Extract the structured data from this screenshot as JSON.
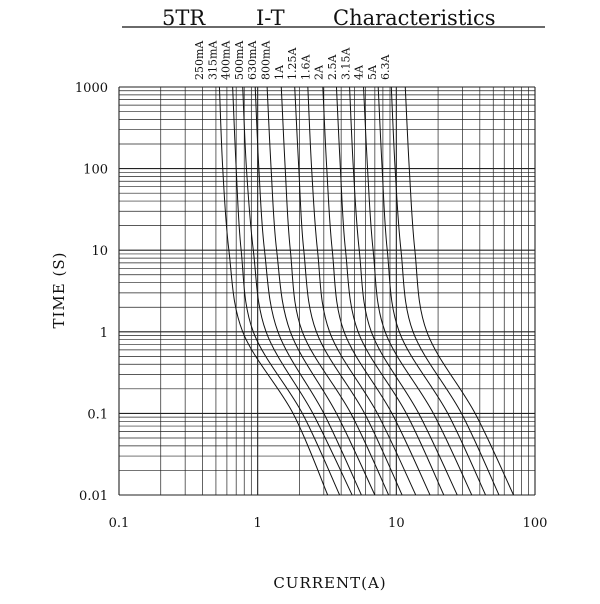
{
  "chart_data": {
    "type": "line",
    "title_parts": [
      "5TR",
      "I-T",
      "Characteristics"
    ],
    "xlabel": "CURRENT(A)",
    "ylabel": "TIME (S)",
    "x_scale": "log",
    "y_scale": "log",
    "xlim": [
      0.1,
      100
    ],
    "ylim": [
      0.01,
      1000
    ],
    "grid": true,
    "x_ticks": [
      {
        "value": 0.1,
        "label": "0.1"
      },
      {
        "value": 1,
        "label": "1"
      },
      {
        "value": 10,
        "label": "10"
      },
      {
        "value": 100,
        "label": "100"
      }
    ],
    "y_ticks": [
      {
        "value": 1000,
        "label": "1000"
      },
      {
        "value": 100,
        "label": "100"
      },
      {
        "value": 10,
        "label": "10"
      },
      {
        "value": 1,
        "label": "1"
      },
      {
        "value": 0.1,
        "label": "0.1"
      },
      {
        "value": 0.01,
        "label": "0.01"
      }
    ],
    "line_color": "#111111",
    "grid_color": "#222222",
    "series": [
      {
        "name": "250mA",
        "points": [
          [
            0.53,
            1000
          ],
          [
            0.56,
            100
          ],
          [
            0.62,
            10
          ],
          [
            0.78,
            1
          ],
          [
            1.8,
            0.1
          ],
          [
            3.2,
            0.01
          ]
        ]
      },
      {
        "name": "315mA",
        "points": [
          [
            0.66,
            1000
          ],
          [
            0.7,
            100
          ],
          [
            0.76,
            10
          ],
          [
            0.93,
            1
          ],
          [
            2.1,
            0.1
          ],
          [
            3.9,
            0.01
          ]
        ]
      },
      {
        "name": "400mA",
        "points": [
          [
            0.78,
            1000
          ],
          [
            0.83,
            100
          ],
          [
            0.93,
            10
          ],
          [
            1.15,
            1
          ],
          [
            2.5,
            0.1
          ],
          [
            4.8,
            0.01
          ]
        ]
      },
      {
        "name": "500mA",
        "points": [
          [
            0.96,
            1000
          ],
          [
            1.02,
            100
          ],
          [
            1.12,
            10
          ],
          [
            1.4,
            1
          ],
          [
            3.0,
            0.1
          ],
          [
            5.6,
            0.01
          ]
        ]
      },
      {
        "name": "630mA",
        "points": [
          [
            1.17,
            1000
          ],
          [
            1.25,
            100
          ],
          [
            1.37,
            10
          ],
          [
            1.72,
            1
          ],
          [
            3.7,
            0.1
          ],
          [
            7.0,
            0.01
          ]
        ]
      },
      {
        "name": "800mA",
        "points": [
          [
            1.48,
            1000
          ],
          [
            1.58,
            100
          ],
          [
            1.72,
            10
          ],
          [
            2.1,
            1
          ],
          [
            4.7,
            0.1
          ],
          [
            8.8,
            0.01
          ]
        ]
      },
      {
        "name": "1A",
        "points": [
          [
            1.85,
            1000
          ],
          [
            1.98,
            100
          ],
          [
            2.15,
            10
          ],
          [
            2.65,
            1
          ],
          [
            5.9,
            0.1
          ],
          [
            11,
            0.01
          ]
        ]
      },
      {
        "name": "1.25A",
        "points": [
          [
            2.3,
            1000
          ],
          [
            2.45,
            100
          ],
          [
            2.7,
            10
          ],
          [
            3.3,
            1
          ],
          [
            7.3,
            0.1
          ],
          [
            13.8,
            0.01
          ]
        ]
      },
      {
        "name": "1.6A",
        "points": [
          [
            2.95,
            1000
          ],
          [
            3.15,
            100
          ],
          [
            3.45,
            10
          ],
          [
            4.2,
            1
          ],
          [
            9.3,
            0.1
          ],
          [
            17.5,
            0.01
          ]
        ]
      },
      {
        "name": "2A",
        "points": [
          [
            3.7,
            1000
          ],
          [
            3.95,
            100
          ],
          [
            4.3,
            10
          ],
          [
            5.3,
            1
          ],
          [
            11.8,
            0.1
          ],
          [
            22,
            0.01
          ]
        ]
      },
      {
        "name": "2.5A",
        "points": [
          [
            4.6,
            1000
          ],
          [
            4.9,
            100
          ],
          [
            5.4,
            10
          ],
          [
            6.6,
            1
          ],
          [
            14.5,
            0.1
          ],
          [
            27.5,
            0.01
          ]
        ]
      },
      {
        "name": "3.15A",
        "points": [
          [
            5.8,
            1000
          ],
          [
            6.2,
            100
          ],
          [
            6.8,
            10
          ],
          [
            8.3,
            1
          ],
          [
            18.5,
            0.1
          ],
          [
            35,
            0.01
          ]
        ]
      },
      {
        "name": "4A",
        "points": [
          [
            7.4,
            1000
          ],
          [
            7.9,
            100
          ],
          [
            8.6,
            10
          ],
          [
            10.5,
            1
          ],
          [
            23.5,
            0.1
          ],
          [
            44,
            0.01
          ]
        ]
      },
      {
        "name": "5A",
        "points": [
          [
            9.2,
            1000
          ],
          [
            9.8,
            100
          ],
          [
            10.8,
            10
          ],
          [
            13.2,
            1
          ],
          [
            29.5,
            0.1
          ],
          [
            55,
            0.01
          ]
        ]
      },
      {
        "name": "6.3A",
        "points": [
          [
            11.6,
            1000
          ],
          [
            12.4,
            100
          ],
          [
            13.6,
            10
          ],
          [
            16.6,
            1
          ],
          [
            37,
            0.1
          ],
          [
            70,
            0.01
          ]
        ]
      }
    ]
  }
}
